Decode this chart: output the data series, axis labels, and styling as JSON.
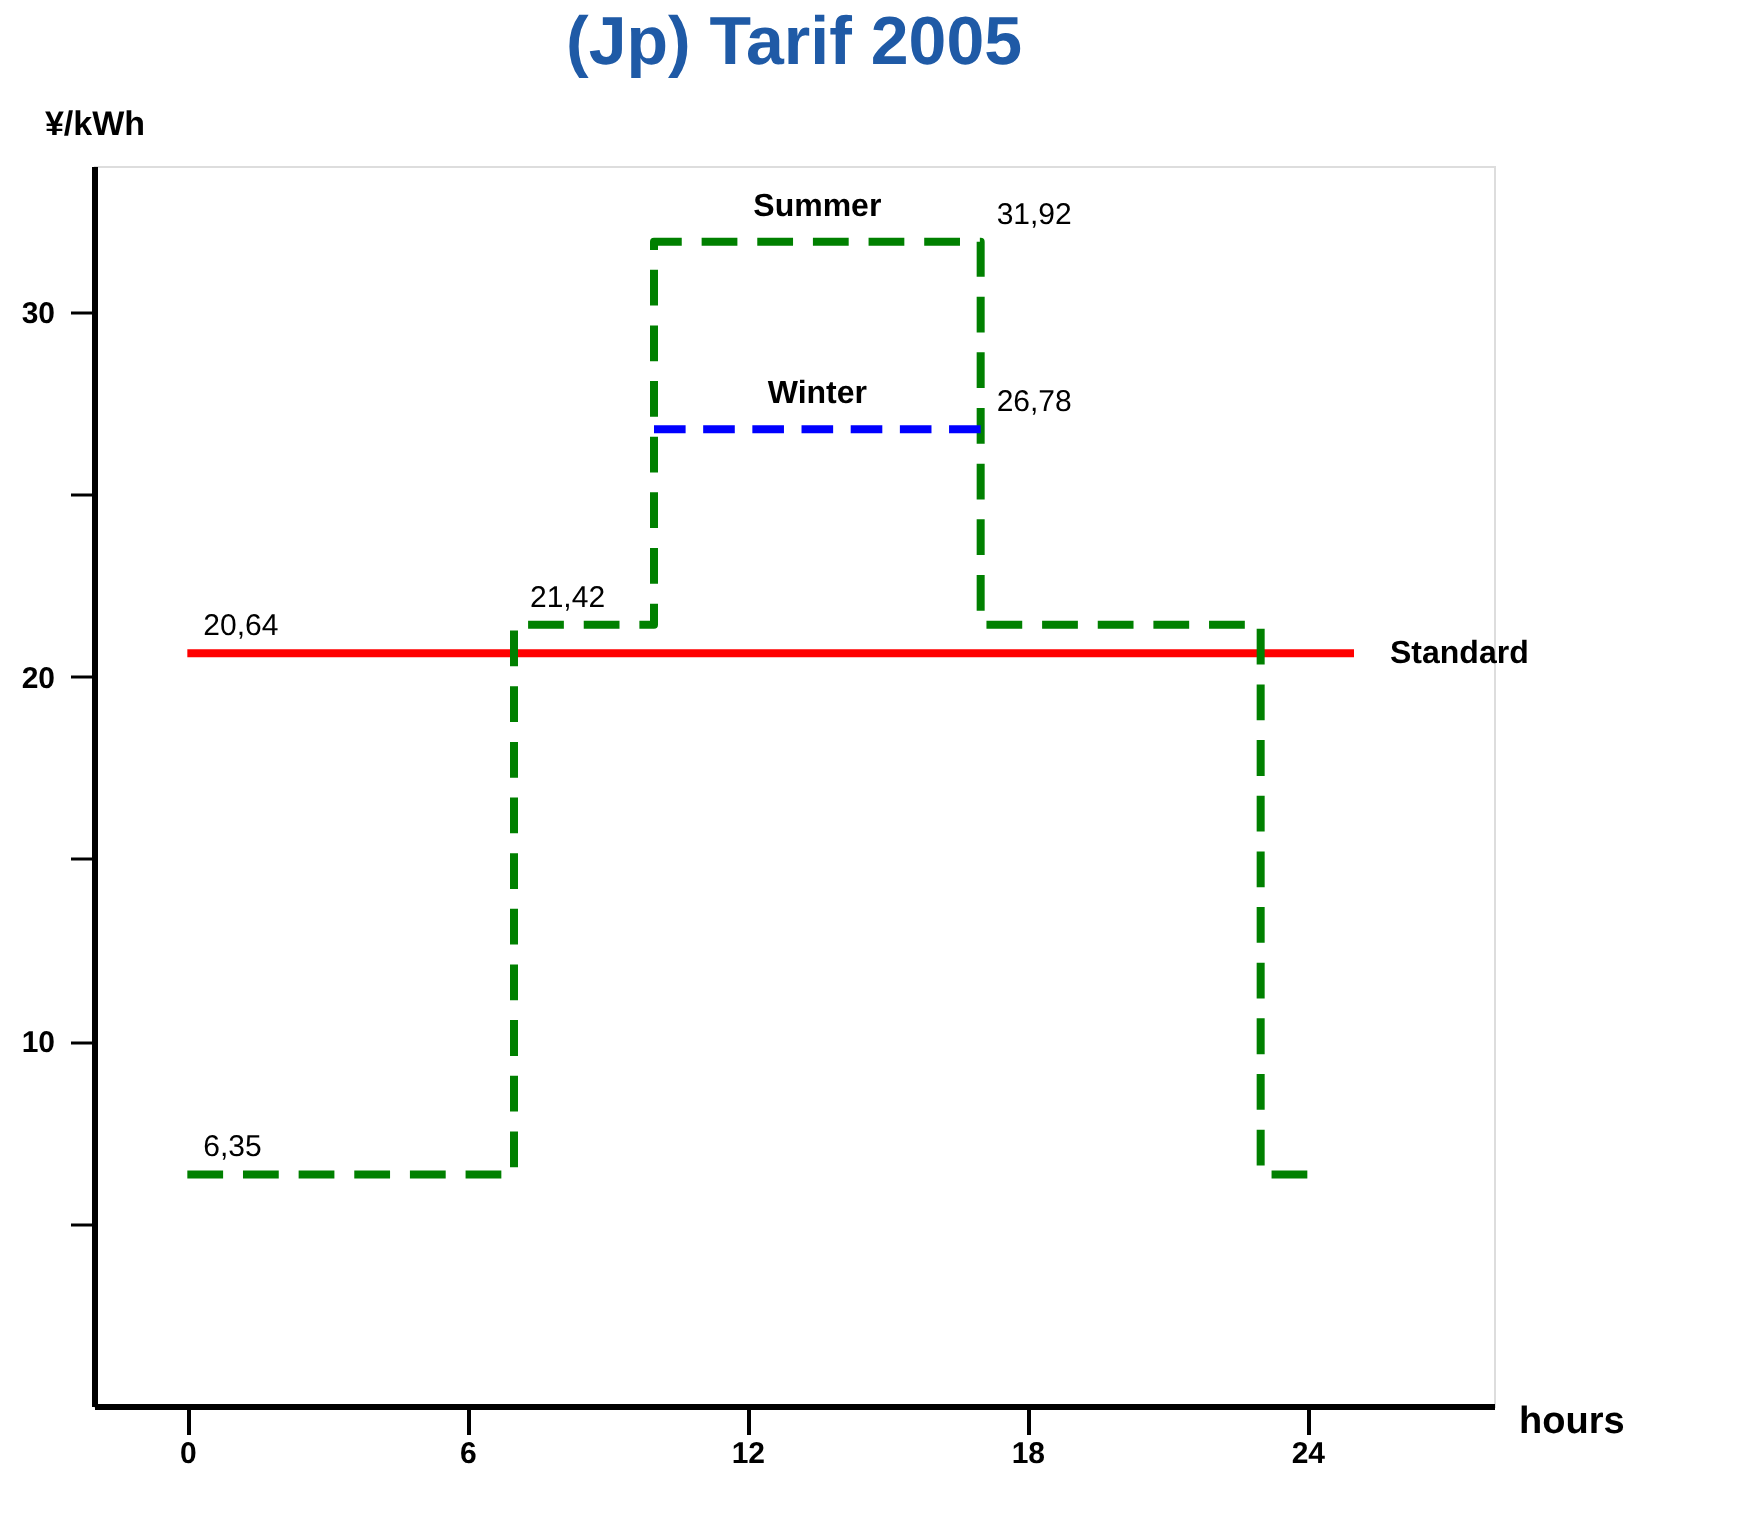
{
  "chart_data": {
    "type": "line",
    "title": "(Jp) Tarif 2005",
    "xlabel": "hours",
    "ylabel": "¥/kWh",
    "xlim": [
      -2,
      28
    ],
    "xticks": [
      0,
      6,
      12,
      18,
      24
    ],
    "ylim": [
      0,
      34
    ],
    "yticks": [
      {
        "value": 5,
        "label": null
      },
      10,
      {
        "value": 15,
        "label": null
      },
      20,
      {
        "value": 25,
        "label": null
      },
      30
    ],
    "grid": false,
    "legend": false,
    "marker": "none",
    "series": [
      {
        "name": "Standard",
        "type": "line",
        "color": "#ff0000",
        "line_style": "solid",
        "x": [
          0,
          25
        ],
        "values": [
          20.64,
          20.64
        ]
      },
      {
        "name": "Summer",
        "type": "step",
        "color": "#008000",
        "line_style": "dashed",
        "x": [
          0,
          7,
          10,
          17,
          23,
          24
        ],
        "values": [
          6.35,
          21.42,
          31.92,
          21.42,
          6.35,
          6.35
        ]
      },
      {
        "name": "Winter",
        "type": "step",
        "color": "#0000ff",
        "line_style": "dashed",
        "x": [
          10,
          17
        ],
        "values": [
          26.78,
          26.78
        ]
      }
    ],
    "annotations": [
      {
        "text": "6,35",
        "x": 0,
        "y": 6.35
      },
      {
        "text": "21,42",
        "x": 7,
        "y": 21.42
      },
      {
        "text": "31,92",
        "x": 17,
        "y": 31.92
      },
      {
        "text": "26,78",
        "x": 17,
        "y": 26.78
      },
      {
        "text": "20,64",
        "x": 0,
        "y": 20.64
      }
    ]
  }
}
